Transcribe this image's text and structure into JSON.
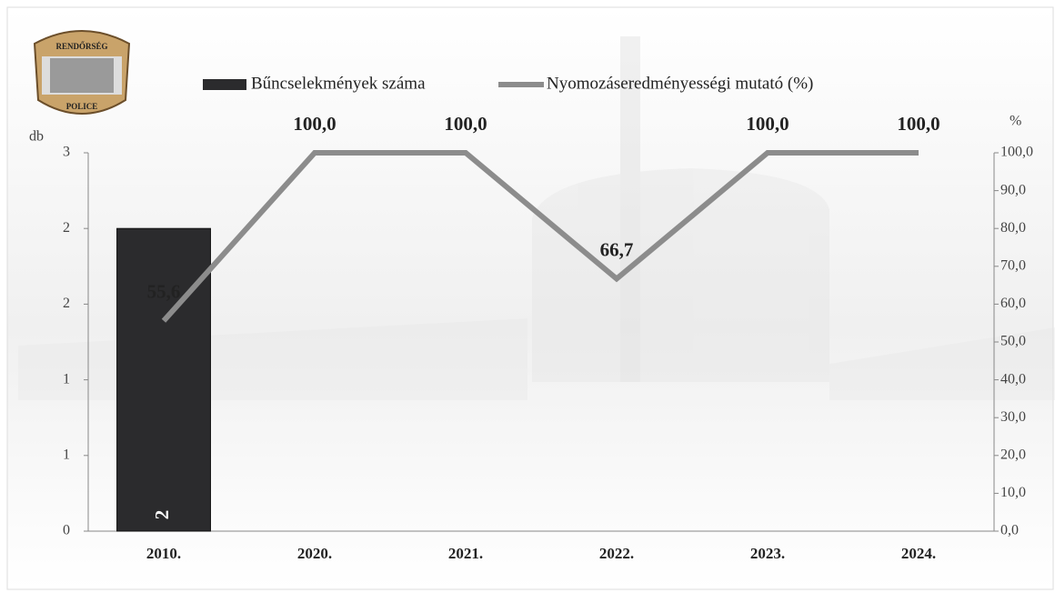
{
  "logo": {
    "top": "RENDŐRSÉG",
    "bottom": "POLICE"
  },
  "chart_data": {
    "type": "bar",
    "ylabel": "db",
    "y2label": "%",
    "categories": [
      "2010.",
      "2020.",
      "2021.",
      "2022.",
      "2023.",
      "2024."
    ],
    "series": [
      {
        "name": "Bűncselekmények száma",
        "type": "bar",
        "color": "#2b2b2d",
        "values": [
          2,
          null,
          null,
          null,
          null,
          null
        ]
      },
      {
        "name": "Nyomozáseredményességi mutató (%)",
        "type": "line",
        "axis": "y2",
        "color": "#8c8c8c",
        "values": [
          55.6,
          100,
          100,
          66.7,
          100,
          100
        ],
        "value_labels": [
          "55,6",
          "100,0",
          "100,0",
          "66,7",
          "100,0",
          "100,0"
        ]
      }
    ],
    "ylim": [
      0,
      2.5
    ],
    "yticks": [
      {
        "value": 0,
        "label": "0"
      },
      {
        "value": 0.5,
        "label": "1"
      },
      {
        "value": 1,
        "label": "1"
      },
      {
        "value": 1.5,
        "label": "2"
      },
      {
        "value": 2,
        "label": "2"
      },
      {
        "value": 2.5,
        "label": "3"
      }
    ],
    "y2lim": [
      0,
      100
    ],
    "y2ticks": [
      {
        "value": 0,
        "label": "0,0"
      },
      {
        "value": 10,
        "label": "10,0"
      },
      {
        "value": 20,
        "label": "20,0"
      },
      {
        "value": 30,
        "label": "30,0"
      },
      {
        "value": 40,
        "label": "40,0"
      },
      {
        "value": 50,
        "label": "50,0"
      },
      {
        "value": 60,
        "label": "60,0"
      },
      {
        "value": 70,
        "label": "70,0"
      },
      {
        "value": 80,
        "label": "80,0"
      },
      {
        "value": 90,
        "label": "90,0"
      },
      {
        "value": 100,
        "label": "100,0"
      }
    ]
  }
}
